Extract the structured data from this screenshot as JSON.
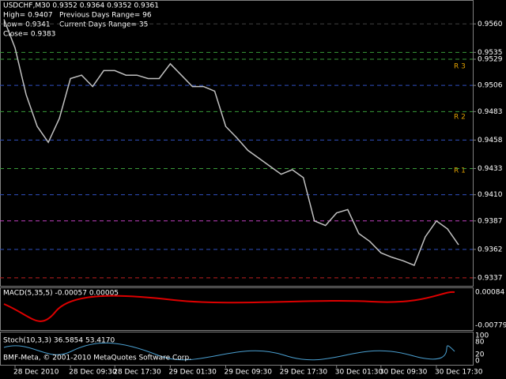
{
  "chart_data": {
    "type": "line",
    "header": [
      "USDCHF,M30 0.9352 0.9364 0.9352 0.9361",
      "High= 0.9407",
      "Previous Days Range= 96",
      "Low= 0.9341",
      "Current Days Range= 35",
      "Close= 0.9383"
    ],
    "pivot_labels": [
      "R 3",
      "R 2",
      "R 1"
    ],
    "categories": [
      null,
      "28 Dec 2010",
      null,
      null,
      null,
      null,
      "28 Dec 09:30",
      null,
      null,
      null,
      "28 Dec 17:30",
      null,
      null,
      null,
      null,
      "29 Dec 01:30",
      null,
      null,
      null,
      null,
      "29 Dec 09:30",
      null,
      null,
      null,
      null,
      "29 Dec 17:30",
      null,
      null,
      null,
      null,
      "30 Dec 01:30",
      null,
      null,
      null,
      "30 Dec 09:30",
      null,
      null,
      null,
      null,
      "30 Dec 17:30",
      null,
      null
    ],
    "values": [
      0.9564,
      0.9539,
      0.9498,
      0.947,
      0.9456,
      0.9477,
      0.9512,
      0.9515,
      0.9505,
      0.9519,
      0.9519,
      0.9515,
      0.9515,
      0.9512,
      0.9512,
      0.9525,
      0.9515,
      0.9505,
      0.9505,
      0.9501,
      0.947,
      0.946,
      0.9449,
      0.9442,
      0.9435,
      0.9428,
      0.9432,
      0.9425,
      0.9387,
      0.9383,
      0.9394,
      0.9397,
      0.9376,
      0.9369,
      0.9359,
      0.9355,
      0.9352,
      0.9348,
      0.9373,
      0.9387,
      0.938,
      0.9366
    ],
    "color": "#c0c0c0",
    "ylim": [
      0.933,
      0.9581
    ],
    "yticks": [
      {
        "value": 0.956,
        "label": "0.9560"
      },
      {
        "value": 0.9535,
        "label": "0.9535"
      },
      {
        "value": 0.9529,
        "label": "0.9529"
      },
      {
        "value": 0.9506,
        "label": "0.9506"
      },
      {
        "value": 0.9483,
        "label": "0.9483"
      },
      {
        "value": 0.9458,
        "label": "0.9458"
      },
      {
        "value": 0.9433,
        "label": "0.9433"
      },
      {
        "value": 0.941,
        "label": "0.9410"
      },
      {
        "value": 0.9387,
        "label": "0.9387"
      },
      {
        "value": 0.9362,
        "label": "0.9362"
      },
      {
        "value": 0.9337,
        "label": "0.9337"
      }
    ],
    "grid": true
  },
  "indicators": {
    "macd": {
      "label": "MACD(5,35,5) -0.00057 0.00005",
      "ticks": [
        "0.00084",
        "-0.00779"
      ]
    },
    "stoch": {
      "label": "Stoch(10,3,3) 36.5854 53.4170",
      "ticks": [
        "100",
        "80",
        "20",
        "0"
      ]
    }
  },
  "footer": "BMF-Meta, © 2001-2010 MetaQuotes Software Corp."
}
